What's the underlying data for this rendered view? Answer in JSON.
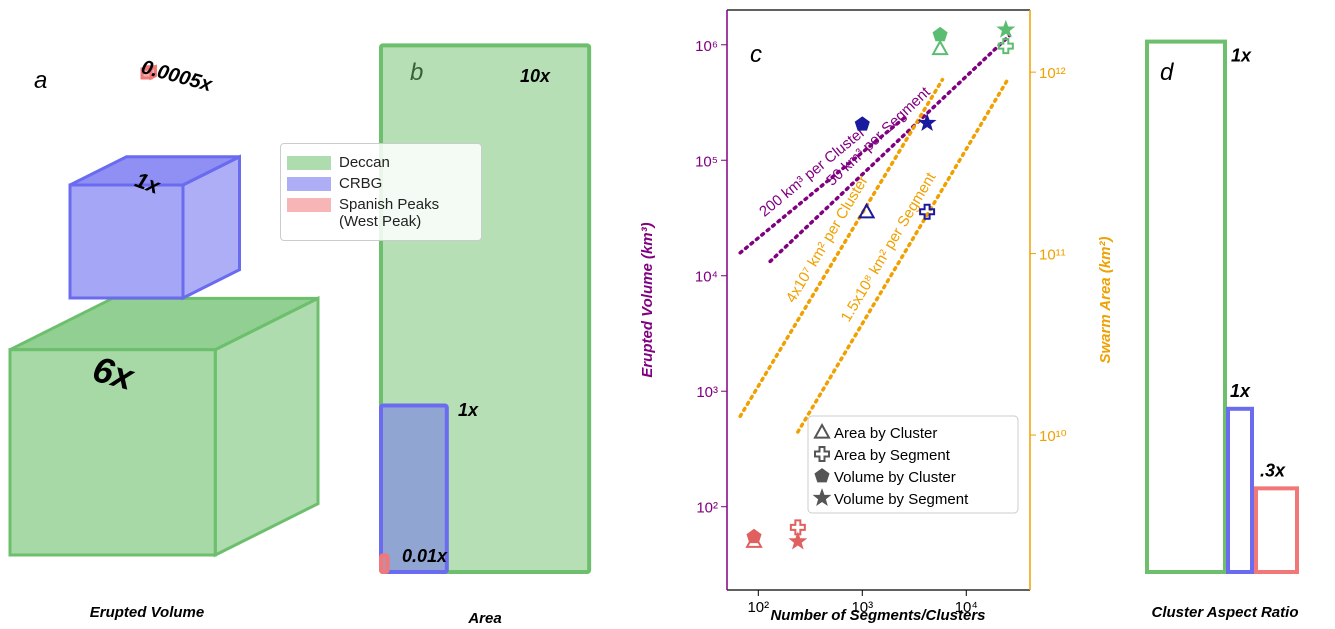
{
  "chart_data": [
    {
      "type": "cube-volume",
      "label": "a",
      "xlabel": "Erupted Volume",
      "series": [
        {
          "name": "Deccan",
          "color": "#6dbf6d",
          "values": [
            6
          ],
          "value_labels": [
            "6x"
          ]
        },
        {
          "name": "CRBG",
          "color": "#6b6bf0",
          "values": [
            1
          ],
          "value_labels": [
            "1x"
          ]
        },
        {
          "name": "Spanish Peaks (West Peak)",
          "color": "#f07878",
          "values": [
            0.0005
          ],
          "value_labels": [
            "0.0005x"
          ]
        }
      ]
    },
    {
      "type": "area-rect",
      "label": "b",
      "xlabel": "Area",
      "values": [
        10,
        1,
        0.01
      ],
      "value_labels": [
        "10x",
        "1x",
        "0.01x"
      ],
      "colors": [
        "#6dbf6d",
        "#6b6bf0",
        "#f07878"
      ]
    },
    {
      "type": "scatter",
      "label": "c",
      "xlabel": "Number of Segments/Clusters",
      "ylabel": "Erupted Volume (km³)",
      "y2label": "Swarm Area (km²)",
      "log_scale": true,
      "xlim": [
        50,
        41000
      ],
      "ylim": [
        19,
        2000000
      ],
      "y2lim": [
        1400000000,
        2200000000000
      ],
      "xticks": [
        {
          "value": 100,
          "label": "10²"
        },
        {
          "value": 1000,
          "label": "10³"
        },
        {
          "value": 10000,
          "label": "10⁴"
        }
      ],
      "yticks": [
        {
          "value": 100,
          "label": "10²"
        },
        {
          "value": 1000,
          "label": "10³"
        },
        {
          "value": 10000,
          "label": "10⁴"
        },
        {
          "value": 100000,
          "label": "10⁵"
        },
        {
          "value": 1000000,
          "label": "10⁶"
        }
      ],
      "y2ticks": [
        {
          "value": 10000000000,
          "label": "10¹⁰"
        },
        {
          "value": 100000000000,
          "label": "10¹¹"
        },
        {
          "value": 1000000000000,
          "label": "10¹²"
        }
      ],
      "y_color": "#800080",
      "y2_color": "#f0a000",
      "series": [
        {
          "name": "Area by Cluster",
          "marker": "triangle",
          "axis": "y2",
          "x": [
            5600,
            1100,
            91
          ],
          "values": [
            1350000000000,
            170000000000,
            2600000000
          ],
          "colors": [
            "#5bbd72",
            "#1a1a9e",
            "#e06060"
          ]
        },
        {
          "name": "Area by Segment",
          "marker": "plus",
          "axis": "y2",
          "x": [
            24000,
            4200,
            240
          ],
          "values": [
            1390000000000,
            170000000000,
            3100000000
          ],
          "colors": [
            "#5bbd72",
            "#1a1a9e",
            "#e06060"
          ]
        },
        {
          "name": "Volume by Cluster",
          "marker": "pentagon",
          "axis": "y",
          "x": [
            5600,
            1000,
            91
          ],
          "values": [
            1220000,
            205000,
            55
          ],
          "colors": [
            "#5bbd72",
            "#1a1a9e",
            "#e06060"
          ]
        },
        {
          "name": "Volume by Segment",
          "marker": "star",
          "axis": "y",
          "x": [
            24000,
            4200,
            240
          ],
          "values": [
            1350000,
            210000,
            50
          ],
          "colors": [
            "#5bbd72",
            "#1a1a9e",
            "#e06060"
          ]
        }
      ],
      "reference_lines": [
        {
          "label": "200 km³ per Cluster",
          "axis": "y",
          "color": "#800080",
          "x": [
            67,
            2600
          ],
          "values": [
            15800,
            237000
          ]
        },
        {
          "label": "50 km³ per Segment",
          "axis": "y",
          "color": "#800080",
          "x": [
            130,
            26000
          ],
          "values": [
            13300,
            1200000
          ]
        },
        {
          "label": "4x10⁷ km² per Cluster",
          "axis": "y2",
          "color": "#f0a000",
          "x": [
            67,
            5900
          ],
          "values": [
            12700000000,
            910000000000
          ]
        },
        {
          "label": "1.5x10⁸ km² per Segment",
          "axis": "y2",
          "color": "#f0a000",
          "x": [
            240,
            25000
          ],
          "values": [
            10400000000,
            910000000000
          ]
        }
      ]
    },
    {
      "type": "aspect-rect",
      "label": "d",
      "xlabel": "Cluster Aspect Ratio",
      "values": [
        1,
        1,
        0.3
      ],
      "value_labels": [
        "1x",
        "1x",
        ".3x"
      ],
      "colors": [
        "#6dbf6d",
        "#6b6bf0",
        "#f07878"
      ]
    }
  ]
}
